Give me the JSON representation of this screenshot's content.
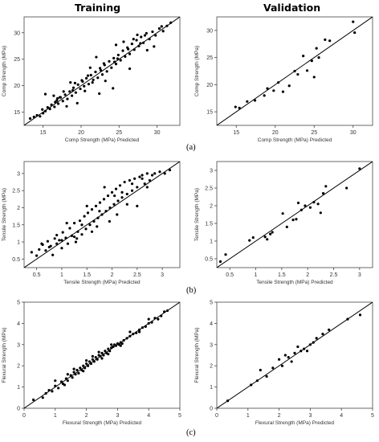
{
  "column_titles": {
    "left": "Training",
    "right": "Validation"
  },
  "panel_labels": [
    "(a)",
    "(b)",
    "(c)"
  ],
  "chart_data": [
    {
      "id": "a-training",
      "type": "scatter",
      "xlabel": "Comp Strength (MPa) Predicted",
      "ylabel": "Comp Strength (MPa)",
      "xlim": [
        12.5,
        33
      ],
      "ylim": [
        12.5,
        33
      ],
      "xticks": [
        15,
        20,
        25,
        30
      ],
      "yticks": [
        15,
        20,
        25,
        30
      ],
      "fit_line": [
        [
          12.5,
          12.5
        ],
        [
          33,
          33
        ]
      ],
      "points": [
        [
          13.3,
          13.8
        ],
        [
          13.8,
          14.1
        ],
        [
          14.2,
          14.4
        ],
        [
          14.6,
          14.2
        ],
        [
          15.0,
          14.8
        ],
        [
          15.3,
          15.2
        ],
        [
          15.6,
          15.9
        ],
        [
          15.9,
          15.6
        ],
        [
          16.1,
          16.4
        ],
        [
          16.5,
          16.0
        ],
        [
          16.8,
          17.2
        ],
        [
          17.0,
          16.6
        ],
        [
          17.3,
          17.8
        ],
        [
          17.6,
          17.1
        ],
        [
          17.9,
          18.3
        ],
        [
          18.2,
          17.5
        ],
        [
          18.5,
          18.9
        ],
        [
          18.8,
          18.1
        ],
        [
          19.0,
          19.6
        ],
        [
          19.3,
          18.7
        ],
        [
          19.6,
          20.2
        ],
        [
          19.9,
          19.4
        ],
        [
          20.2,
          20.8
        ],
        [
          20.4,
          19.9
        ],
        [
          20.7,
          21.4
        ],
        [
          21.0,
          20.3
        ],
        [
          21.3,
          22.0
        ],
        [
          21.6,
          21.1
        ],
        [
          21.9,
          22.6
        ],
        [
          22.2,
          21.5
        ],
        [
          22.5,
          23.3
        ],
        [
          22.8,
          22.1
        ],
        [
          23.1,
          23.9
        ],
        [
          23.4,
          22.7
        ],
        [
          23.7,
          24.6
        ],
        [
          24.0,
          23.4
        ],
        [
          24.3,
          25.2
        ],
        [
          24.6,
          24.1
        ],
        [
          24.9,
          25.8
        ],
        [
          25.2,
          24.8
        ],
        [
          25.5,
          26.6
        ],
        [
          25.8,
          25.5
        ],
        [
          26.1,
          27.2
        ],
        [
          26.4,
          26.0
        ],
        [
          26.7,
          27.9
        ],
        [
          27.0,
          26.8
        ],
        [
          27.3,
          28.6
        ],
        [
          27.6,
          27.5
        ],
        [
          27.9,
          29.2
        ],
        [
          28.2,
          28.1
        ],
        [
          28.6,
          29.9
        ],
        [
          29.0,
          28.8
        ],
        [
          29.4,
          30.2
        ],
        [
          29.8,
          29.5
        ],
        [
          30.3,
          30.8
        ],
        [
          30.8,
          30.3
        ],
        [
          31.3,
          31.3
        ],
        [
          31.8,
          31.9
        ],
        [
          15.3,
          18.4
        ],
        [
          16.4,
          18.1
        ],
        [
          17.2,
          17.8
        ],
        [
          18.1,
          16.1
        ],
        [
          18.6,
          20.6
        ],
        [
          19.5,
          16.7
        ],
        [
          20.5,
          19.0
        ],
        [
          21.2,
          23.4
        ],
        [
          22.0,
          25.4
        ],
        [
          22.4,
          18.5
        ],
        [
          23.2,
          20.9
        ],
        [
          24.2,
          19.5
        ],
        [
          24.6,
          27.7
        ],
        [
          25.6,
          28.3
        ],
        [
          26.4,
          23.2
        ],
        [
          27.4,
          29.6
        ],
        [
          28.7,
          26.7
        ],
        [
          29.6,
          27.4
        ],
        [
          30.6,
          31.2
        ],
        [
          16.6,
          16.9
        ],
        [
          17.7,
          18.9
        ],
        [
          19.2,
          20.5
        ],
        [
          20.9,
          21.9
        ],
        [
          22.6,
          22.9
        ],
        [
          24.4,
          24.5
        ],
        [
          26.9,
          28.8
        ],
        [
          28.4,
          29.5
        ],
        [
          14.9,
          15.5
        ],
        [
          16.9,
          17.6
        ],
        [
          18.9,
          19.1
        ],
        [
          20.1,
          21.0
        ],
        [
          21.5,
          20.6
        ],
        [
          23.0,
          24.2
        ],
        [
          24.8,
          25.1
        ],
        [
          26.2,
          26.9
        ],
        [
          27.8,
          28.0
        ]
      ]
    },
    {
      "id": "a-validation",
      "type": "scatter",
      "xlabel": "Comp Strength (MPa) Predicted",
      "ylabel": "Comp Strength (MPa)",
      "xlim": [
        12.5,
        32.5
      ],
      "ylim": [
        12.5,
        32.5
      ],
      "xticks": [
        15,
        20,
        25,
        30
      ],
      "yticks": [
        15,
        20,
        25,
        30
      ],
      "fit_line": [
        [
          12.5,
          12.5
        ],
        [
          32.5,
          32.5
        ]
      ],
      "points": [
        [
          14.9,
          15.9
        ],
        [
          15.4,
          15.7
        ],
        [
          16.4,
          16.9
        ],
        [
          17.4,
          17.1
        ],
        [
          18.6,
          18.0
        ],
        [
          19.0,
          19.3
        ],
        [
          19.8,
          18.9
        ],
        [
          20.4,
          20.4
        ],
        [
          21.0,
          18.7
        ],
        [
          21.8,
          19.8
        ],
        [
          22.5,
          22.5
        ],
        [
          22.9,
          21.9
        ],
        [
          23.6,
          25.3
        ],
        [
          24.1,
          22.6
        ],
        [
          24.7,
          24.4
        ],
        [
          25.0,
          21.4
        ],
        [
          25.3,
          26.7
        ],
        [
          25.6,
          25.0
        ],
        [
          26.4,
          28.3
        ],
        [
          27.0,
          28.1
        ],
        [
          30.0,
          31.6
        ],
        [
          30.2,
          29.6
        ]
      ]
    },
    {
      "id": "b-training",
      "type": "scatter",
      "xlabel": "Tensile Strength (MPa) Predicted",
      "ylabel": "Tensile Strength (MPa)",
      "xlim": [
        0.25,
        3.35
      ],
      "ylim": [
        0.25,
        3.35
      ],
      "xticks": [
        0.5,
        1,
        1.5,
        2,
        2.5,
        3
      ],
      "yticks": [
        0.5,
        1,
        1.5,
        2,
        2.5,
        3
      ],
      "fit_line": [
        [
          0.25,
          0.25
        ],
        [
          3.35,
          3.35
        ]
      ],
      "points": [
        [
          0.4,
          0.7
        ],
        [
          0.5,
          0.6
        ],
        [
          0.55,
          0.78
        ],
        [
          0.62,
          0.92
        ],
        [
          0.68,
          0.75
        ],
        [
          0.72,
          1.02
        ],
        [
          0.78,
          0.88
        ],
        [
          0.82,
          0.62
        ],
        [
          0.86,
          1.1
        ],
        [
          0.9,
          0.95
        ],
        [
          0.95,
          1.05
        ],
        [
          1.0,
          0.82
        ],
        [
          1.02,
          1.28
        ],
        [
          1.08,
          1.12
        ],
        [
          1.12,
          0.95
        ],
        [
          1.16,
          1.4
        ],
        [
          1.2,
          1.18
        ],
        [
          1.25,
          1.55
        ],
        [
          1.28,
          1.0
        ],
        [
          1.32,
          1.3
        ],
        [
          1.36,
          1.62
        ],
        [
          1.4,
          1.22
        ],
        [
          1.45,
          1.75
        ],
        [
          1.48,
          1.38
        ],
        [
          1.52,
          1.85
        ],
        [
          1.56,
          1.5
        ],
        [
          1.6,
          1.95
        ],
        [
          1.64,
          1.6
        ],
        [
          1.68,
          2.05
        ],
        [
          1.72,
          1.7
        ],
        [
          1.76,
          2.15
        ],
        [
          1.8,
          1.8
        ],
        [
          1.84,
          2.25
        ],
        [
          1.88,
          1.9
        ],
        [
          1.92,
          2.35
        ],
        [
          1.96,
          2.0
        ],
        [
          2.0,
          2.45
        ],
        [
          2.04,
          2.1
        ],
        [
          2.08,
          2.55
        ],
        [
          2.12,
          2.2
        ],
        [
          2.16,
          2.65
        ],
        [
          2.2,
          2.3
        ],
        [
          2.25,
          2.75
        ],
        [
          2.3,
          2.4
        ],
        [
          2.35,
          2.8
        ],
        [
          2.4,
          2.5
        ],
        [
          2.45,
          2.85
        ],
        [
          2.5,
          2.6
        ],
        [
          2.55,
          2.9
        ],
        [
          2.6,
          2.95
        ],
        [
          2.65,
          2.7
        ],
        [
          2.7,
          3.0
        ],
        [
          2.75,
          2.8
        ],
        [
          2.8,
          2.95
        ],
        [
          2.85,
          3.0
        ],
        [
          2.95,
          3.05
        ],
        [
          3.05,
          3.0
        ],
        [
          3.15,
          3.1
        ],
        [
          0.6,
          0.95
        ],
        [
          0.9,
          1.2
        ],
        [
          1.1,
          1.55
        ],
        [
          1.3,
          1.1
        ],
        [
          1.5,
          2.05
        ],
        [
          1.7,
          1.45
        ],
        [
          1.85,
          2.6
        ],
        [
          1.95,
          1.6
        ],
        [
          2.1,
          1.8
        ],
        [
          2.3,
          2.1
        ],
        [
          2.5,
          2.05
        ],
        [
          2.7,
          2.6
        ],
        [
          1.0,
          1.05
        ],
        [
          1.4,
          1.5
        ],
        [
          1.75,
          1.9
        ],
        [
          2.05,
          2.35
        ],
        [
          2.4,
          2.7
        ],
        [
          0.75,
          0.85
        ],
        [
          1.25,
          1.15
        ],
        [
          1.6,
          1.3
        ],
        [
          2.2,
          2.45
        ],
        [
          2.6,
          2.85
        ]
      ]
    },
    {
      "id": "b-validation",
      "type": "scatter",
      "xlabel": "Tensile Strength (MPa) Predicted",
      "ylabel": "Tensile Strength (MPa)",
      "xlim": [
        0.25,
        3.25
      ],
      "ylim": [
        0.25,
        3.25
      ],
      "xticks": [
        0.5,
        1,
        1.5,
        2,
        2.5,
        3
      ],
      "yticks": [
        0.5,
        1,
        1.5,
        2,
        2.5,
        3
      ],
      "fit_line": [
        [
          0.25,
          0.25
        ],
        [
          3.25,
          3.25
        ]
      ],
      "points": [
        [
          0.32,
          0.42
        ],
        [
          0.42,
          0.62
        ],
        [
          0.88,
          1.02
        ],
        [
          0.95,
          1.1
        ],
        [
          1.18,
          1.12
        ],
        [
          1.22,
          1.05
        ],
        [
          1.28,
          1.2
        ],
        [
          1.32,
          1.25
        ],
        [
          1.52,
          1.78
        ],
        [
          1.6,
          1.4
        ],
        [
          1.72,
          1.6
        ],
        [
          1.78,
          1.62
        ],
        [
          1.82,
          2.08
        ],
        [
          1.88,
          1.88
        ],
        [
          1.95,
          2.0
        ],
        [
          2.05,
          1.95
        ],
        [
          2.12,
          2.1
        ],
        [
          2.2,
          2.05
        ],
        [
          2.25,
          1.8
        ],
        [
          2.3,
          2.35
        ],
        [
          2.35,
          2.55
        ],
        [
          2.75,
          2.5
        ],
        [
          3.0,
          3.05
        ]
      ]
    },
    {
      "id": "c-training",
      "type": "scatter",
      "xlabel": "Flexural Strength (MPa) Predicted",
      "ylabel": "Flexural Strength (MPa)",
      "xlim": [
        0,
        5
      ],
      "ylim": [
        0,
        5
      ],
      "xticks": [
        0,
        1,
        2,
        3,
        4,
        5
      ],
      "yticks": [
        0,
        1,
        2,
        3,
        4,
        5
      ],
      "fit_line": [
        [
          0,
          0
        ],
        [
          5,
          5
        ]
      ],
      "points": [
        [
          0.3,
          0.4
        ],
        [
          0.6,
          0.5
        ],
        [
          0.7,
          0.7
        ],
        [
          0.9,
          0.8
        ],
        [
          1.0,
          1.05
        ],
        [
          1.1,
          0.95
        ],
        [
          1.2,
          1.25
        ],
        [
          1.25,
          1.15
        ],
        [
          1.35,
          1.4
        ],
        [
          1.4,
          1.3
        ],
        [
          1.5,
          1.55
        ],
        [
          1.55,
          1.45
        ],
        [
          1.6,
          1.7
        ],
        [
          1.65,
          1.6
        ],
        [
          1.7,
          1.8
        ],
        [
          1.75,
          1.65
        ],
        [
          1.8,
          1.9
        ],
        [
          1.85,
          1.8
        ],
        [
          1.9,
          2.0
        ],
        [
          1.95,
          1.9
        ],
        [
          2.0,
          2.1
        ],
        [
          2.05,
          2.0
        ],
        [
          2.1,
          2.2
        ],
        [
          2.15,
          2.1
        ],
        [
          2.2,
          2.3
        ],
        [
          2.25,
          2.2
        ],
        [
          2.3,
          2.4
        ],
        [
          2.35,
          2.3
        ],
        [
          2.4,
          2.5
        ],
        [
          2.45,
          2.45
        ],
        [
          2.5,
          2.6
        ],
        [
          2.55,
          2.5
        ],
        [
          2.6,
          2.7
        ],
        [
          2.65,
          2.6
        ],
        [
          2.7,
          2.8
        ],
        [
          2.75,
          2.7
        ],
        [
          2.8,
          2.85
        ],
        [
          2.85,
          2.9
        ],
        [
          2.9,
          3.0
        ],
        [
          2.95,
          2.95
        ],
        [
          3.0,
          3.05
        ],
        [
          3.05,
          3.0
        ],
        [
          3.1,
          3.1
        ],
        [
          3.15,
          3.05
        ],
        [
          3.2,
          3.2
        ],
        [
          3.3,
          3.3
        ],
        [
          3.4,
          3.4
        ],
        [
          3.5,
          3.5
        ],
        [
          3.6,
          3.55
        ],
        [
          3.7,
          3.7
        ],
        [
          3.8,
          3.8
        ],
        [
          3.9,
          3.85
        ],
        [
          4.0,
          4.0
        ],
        [
          4.1,
          4.05
        ],
        [
          4.2,
          4.25
        ],
        [
          4.3,
          4.2
        ],
        [
          4.4,
          4.35
        ],
        [
          4.5,
          4.55
        ],
        [
          4.6,
          4.6
        ],
        [
          1.0,
          1.3
        ],
        [
          1.3,
          1.1
        ],
        [
          1.6,
          1.85
        ],
        [
          1.9,
          1.75
        ],
        [
          2.2,
          2.45
        ],
        [
          2.5,
          2.35
        ],
        [
          2.8,
          3.0
        ],
        [
          3.1,
          2.95
        ],
        [
          3.4,
          3.6
        ],
        [
          3.7,
          3.6
        ],
        [
          4.0,
          4.2
        ],
        [
          2.0,
          2.25
        ],
        [
          2.4,
          2.65
        ],
        [
          2.7,
          2.55
        ],
        [
          1.4,
          1.6
        ],
        [
          0.8,
          0.85
        ]
      ]
    },
    {
      "id": "c-validation",
      "type": "scatter",
      "xlabel": "Flexural Strength (MPa) Predicted",
      "ylabel": "Flexural Strength (MPa)",
      "xlim": [
        0,
        5
      ],
      "ylim": [
        0,
        5
      ],
      "xticks": [
        0,
        1,
        2,
        3,
        4,
        5
      ],
      "yticks": [
        0,
        1,
        2,
        3,
        4,
        5
      ],
      "fit_line": [
        [
          0,
          0
        ],
        [
          5,
          5
        ]
      ],
      "points": [
        [
          0.35,
          0.35
        ],
        [
          1.1,
          1.1
        ],
        [
          1.3,
          1.3
        ],
        [
          1.4,
          1.8
        ],
        [
          1.6,
          1.5
        ],
        [
          1.8,
          1.9
        ],
        [
          2.0,
          2.3
        ],
        [
          2.1,
          2.0
        ],
        [
          2.2,
          2.5
        ],
        [
          2.3,
          2.4
        ],
        [
          2.4,
          2.2
        ],
        [
          2.5,
          2.6
        ],
        [
          2.6,
          2.9
        ],
        [
          2.7,
          2.7
        ],
        [
          2.8,
          2.8
        ],
        [
          2.9,
          2.7
        ],
        [
          3.0,
          3.0
        ],
        [
          3.1,
          3.1
        ],
        [
          3.2,
          3.3
        ],
        [
          3.4,
          3.5
        ],
        [
          3.6,
          3.7
        ],
        [
          4.2,
          4.2
        ],
        [
          4.6,
          4.4
        ]
      ]
    }
  ]
}
